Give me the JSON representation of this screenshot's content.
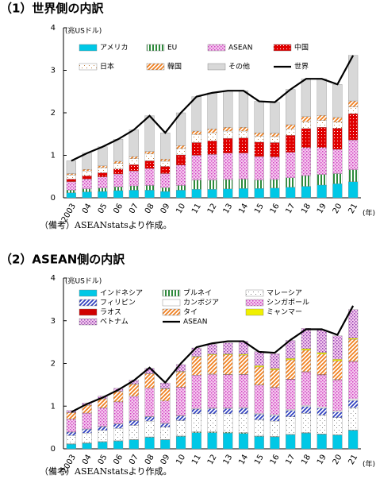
{
  "chart_data": [
    {
      "type": "bar",
      "stacked": true,
      "title": "（1）世界側の内訳",
      "y_label": "(兆USドル)",
      "x_label": "(年)",
      "note": "（備考）ASEANstatsより作成。",
      "categories": [
        "2003",
        "04",
        "05",
        "06",
        "07",
        "08",
        "09",
        "10",
        "11",
        "12",
        "13",
        "14",
        "15",
        "16",
        "17",
        "18",
        "19",
        "20",
        "21"
      ],
      "ylim": [
        0,
        4
      ],
      "yticks": [
        0,
        1,
        2,
        3,
        4
      ],
      "series": [
        {
          "name": "アメリカ",
          "color": "#00c8e6",
          "pattern": "solid",
          "values": [
            0.12,
            0.14,
            0.15,
            0.17,
            0.18,
            0.18,
            0.15,
            0.18,
            0.2,
            0.2,
            0.21,
            0.22,
            0.22,
            0.23,
            0.25,
            0.27,
            0.3,
            0.33,
            0.38
          ]
        },
        {
          "name": "EU",
          "color": "#2e8b3c",
          "pattern": "vstripe",
          "values": [
            0.06,
            0.07,
            0.08,
            0.09,
            0.1,
            0.11,
            0.09,
            0.11,
            0.22,
            0.22,
            0.22,
            0.22,
            0.2,
            0.2,
            0.22,
            0.25,
            0.25,
            0.24,
            0.28
          ]
        },
        {
          "name": "ASEAN",
          "color": "#d040c0",
          "pattern": "dots",
          "values": [
            0.2,
            0.23,
            0.26,
            0.3,
            0.35,
            0.4,
            0.33,
            0.48,
            0.58,
            0.6,
            0.62,
            0.61,
            0.55,
            0.53,
            0.6,
            0.66,
            0.63,
            0.57,
            0.7
          ]
        },
        {
          "name": "中国",
          "color": "#e00000",
          "pattern": "dotsinv",
          "values": [
            0.06,
            0.08,
            0.1,
            0.12,
            0.15,
            0.18,
            0.17,
            0.24,
            0.3,
            0.32,
            0.35,
            0.36,
            0.34,
            0.34,
            0.4,
            0.45,
            0.48,
            0.5,
            0.62
          ]
        },
        {
          "name": "日本",
          "color": "#c08040",
          "pattern": "sparse",
          "values": [
            0.1,
            0.11,
            0.12,
            0.13,
            0.14,
            0.16,
            0.12,
            0.15,
            0.19,
            0.19,
            0.17,
            0.16,
            0.14,
            0.14,
            0.15,
            0.16,
            0.16,
            0.14,
            0.16
          ]
        },
        {
          "name": "韓国",
          "color": "#f08020",
          "pattern": "hatch",
          "values": [
            0.03,
            0.04,
            0.04,
            0.05,
            0.05,
            0.06,
            0.05,
            0.07,
            0.08,
            0.09,
            0.09,
            0.09,
            0.08,
            0.08,
            0.1,
            0.12,
            0.12,
            0.11,
            0.14
          ]
        },
        {
          "name": "その他",
          "color": "#d8d8d8",
          "pattern": "solid",
          "values": [
            0.3,
            0.38,
            0.45,
            0.52,
            0.63,
            0.84,
            0.62,
            0.77,
            0.81,
            0.85,
            0.86,
            0.86,
            0.74,
            0.73,
            0.83,
            0.89,
            0.86,
            0.78,
            1.07
          ]
        }
      ],
      "line": {
        "name": "世界",
        "color": "#000000",
        "values": [
          0.87,
          1.05,
          1.2,
          1.38,
          1.6,
          1.93,
          1.53,
          2.0,
          2.38,
          2.47,
          2.52,
          2.52,
          2.27,
          2.25,
          2.55,
          2.8,
          2.8,
          2.67,
          3.35
        ]
      },
      "legend_columns": 4
    },
    {
      "type": "bar",
      "stacked": true,
      "title": "（2）ASEAN側の内訳",
      "y_label": "(兆USドル)",
      "x_label": "(年)",
      "note": "（備考）ASEANstatsより作成。",
      "categories": [
        "2003",
        "04",
        "05",
        "06",
        "07",
        "08",
        "09",
        "10",
        "11",
        "12",
        "13",
        "14",
        "15",
        "16",
        "17",
        "18",
        "19",
        "20",
        "21"
      ],
      "ylim": [
        0,
        4
      ],
      "yticks": [
        0,
        1,
        2,
        3,
        4
      ],
      "series": [
        {
          "name": "インドネシア",
          "color": "#00c8e6",
          "pattern": "solid",
          "values": [
            0.11,
            0.13,
            0.16,
            0.18,
            0.21,
            0.27,
            0.21,
            0.29,
            0.38,
            0.38,
            0.37,
            0.36,
            0.29,
            0.28,
            0.33,
            0.37,
            0.34,
            0.32,
            0.43
          ]
        },
        {
          "name": "ブルネイ",
          "color": "#2e8b3c",
          "pattern": "vstripe",
          "values": [
            0.01,
            0.01,
            0.01,
            0.01,
            0.01,
            0.01,
            0.01,
            0.01,
            0.02,
            0.02,
            0.02,
            0.02,
            0.01,
            0.01,
            0.01,
            0.01,
            0.01,
            0.01,
            0.01
          ]
        },
        {
          "name": "マレーシア",
          "color": "#888888",
          "pattern": "sparse",
          "values": [
            0.19,
            0.23,
            0.26,
            0.29,
            0.33,
            0.37,
            0.29,
            0.36,
            0.42,
            0.42,
            0.43,
            0.44,
            0.38,
            0.36,
            0.41,
            0.45,
            0.44,
            0.4,
            0.52
          ]
        },
        {
          "name": "フィリピン",
          "color": "#3040c0",
          "pattern": "hatch",
          "values": [
            0.08,
            0.09,
            0.09,
            0.1,
            0.11,
            0.1,
            0.08,
            0.11,
            0.11,
            0.12,
            0.12,
            0.13,
            0.13,
            0.13,
            0.15,
            0.16,
            0.16,
            0.13,
            0.17
          ]
        },
        {
          "name": "カンボジア",
          "color": "#ffffff",
          "pattern": "solid",
          "values": [
            0.005,
            0.006,
            0.007,
            0.008,
            0.009,
            0.01,
            0.01,
            0.01,
            0.013,
            0.015,
            0.016,
            0.018,
            0.02,
            0.022,
            0.025,
            0.028,
            0.03,
            0.033,
            0.04
          ]
        },
        {
          "name": "シンガポール",
          "color": "#d040c0",
          "pattern": "dots",
          "values": [
            0.3,
            0.37,
            0.43,
            0.51,
            0.56,
            0.66,
            0.52,
            0.66,
            0.78,
            0.79,
            0.78,
            0.77,
            0.66,
            0.63,
            0.7,
            0.78,
            0.75,
            0.72,
            0.87
          ]
        },
        {
          "name": "ラオス",
          "color": "#d00000",
          "pattern": "solid",
          "values": [
            0.002,
            0.002,
            0.002,
            0.003,
            0.003,
            0.003,
            0.003,
            0.004,
            0.005,
            0.006,
            0.006,
            0.007,
            0.007,
            0.008,
            0.009,
            0.01,
            0.01,
            0.01,
            0.013
          ]
        },
        {
          "name": "タイ",
          "color": "#f08020",
          "pattern": "hatch",
          "values": [
            0.15,
            0.18,
            0.21,
            0.24,
            0.28,
            0.33,
            0.28,
            0.36,
            0.42,
            0.45,
            0.46,
            0.45,
            0.42,
            0.41,
            0.45,
            0.5,
            0.48,
            0.44,
            0.51
          ]
        },
        {
          "name": "ミャンマー",
          "color": "#f0f000",
          "pattern": "solid",
          "values": [
            0.005,
            0.005,
            0.006,
            0.007,
            0.007,
            0.01,
            0.01,
            0.01,
            0.015,
            0.017,
            0.02,
            0.025,
            0.03,
            0.03,
            0.035,
            0.037,
            0.037,
            0.033,
            0.03
          ]
        },
        {
          "name": "ベトナム",
          "color": "#9040b0",
          "pattern": "dots",
          "values": [
            0.045,
            0.05,
            0.06,
            0.07,
            0.09,
            0.12,
            0.13,
            0.16,
            0.2,
            0.23,
            0.26,
            0.3,
            0.33,
            0.35,
            0.42,
            0.48,
            0.52,
            0.55,
            0.67
          ]
        }
      ],
      "line": {
        "name": "ASEAN",
        "color": "#000000",
        "values": [
          0.86,
          1.05,
          1.2,
          1.38,
          1.6,
          1.9,
          1.55,
          2.0,
          2.38,
          2.47,
          2.52,
          2.52,
          2.27,
          2.25,
          2.55,
          2.8,
          2.8,
          2.67,
          3.35
        ]
      },
      "legend_columns": 3
    }
  ]
}
